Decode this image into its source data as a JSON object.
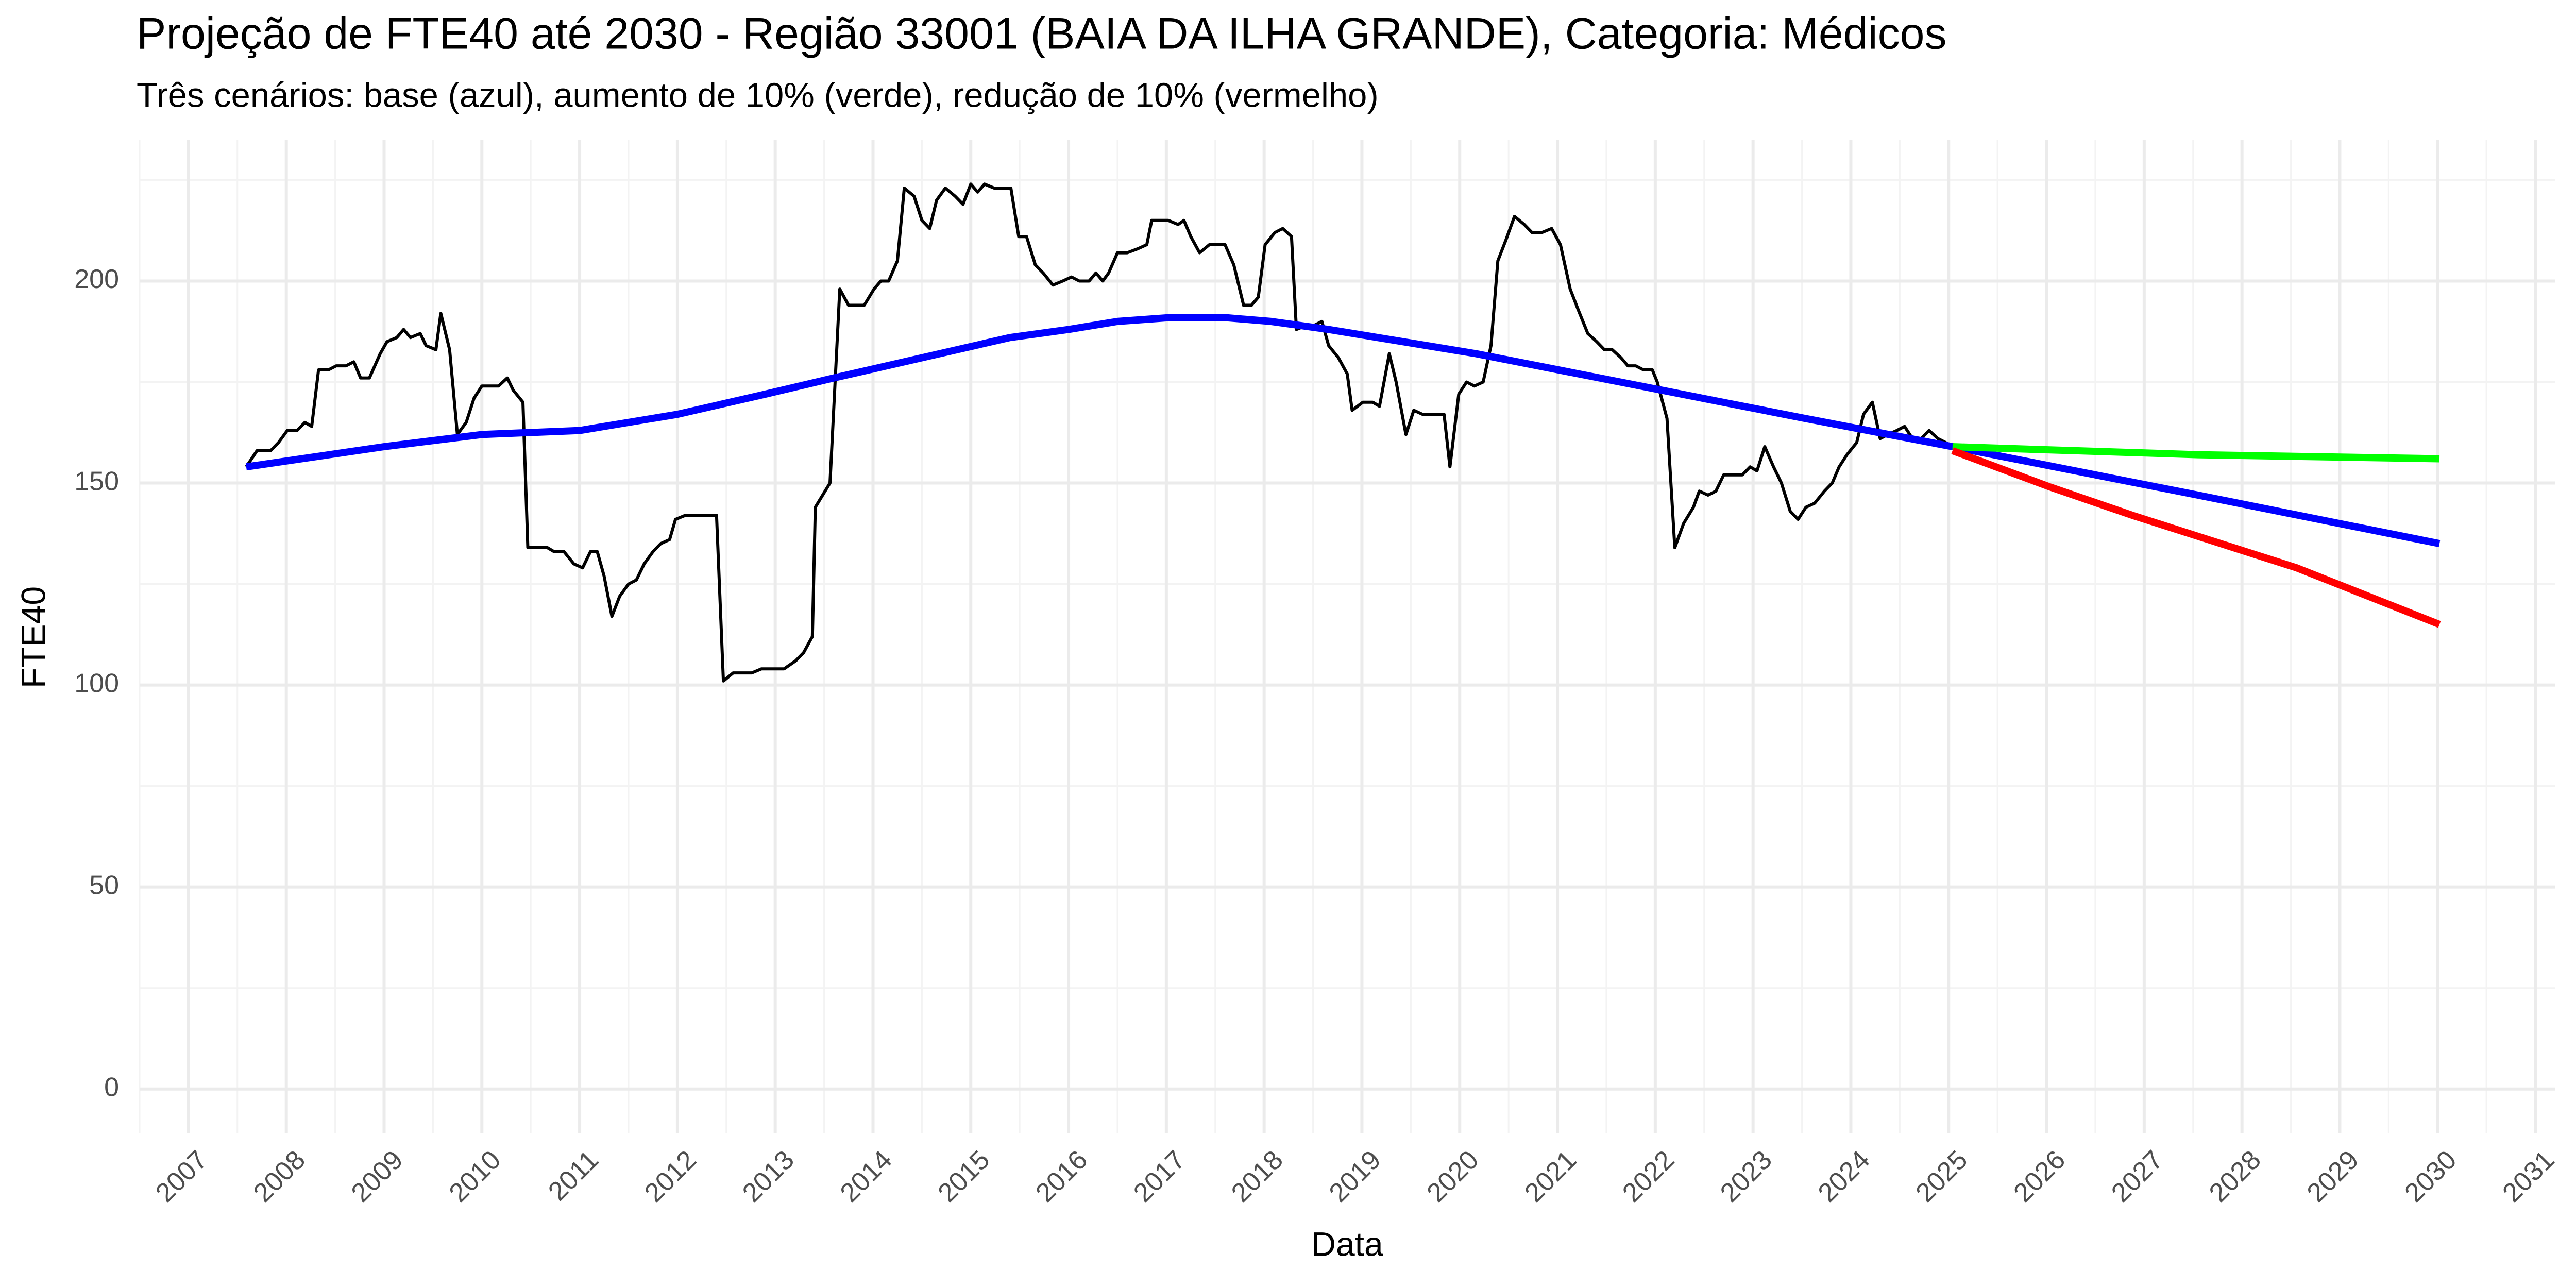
{
  "chart_data": {
    "type": "line",
    "title": "Projeção de FTE40 até 2030 - Região 33001 (BAIA DA ILHA GRANDE), Categoria: Médicos",
    "subtitle": "Três cenários: base (azul), aumento de 10% (verde), redução de 10% (vermelho)",
    "x_label": "Data",
    "y_label": "FTE40",
    "xlim": [
      2006.5,
      2031.2
    ],
    "ylim": [
      -11,
      235
    ],
    "xticks": [
      2007,
      2008,
      2009,
      2010,
      2011,
      2012,
      2013,
      2014,
      2015,
      2016,
      2017,
      2018,
      2019,
      2020,
      2021,
      2022,
      2023,
      2024,
      2025,
      2026,
      2027,
      2028,
      2029,
      2030,
      2031
    ],
    "yticks": [
      0,
      50,
      100,
      150,
      200
    ],
    "grid": true,
    "minor_grid": true,
    "series": [
      {
        "color": "#000000",
        "width": 6,
        "x": [
          2007.59,
          2007.7,
          2007.84,
          2007.92,
          2008.01,
          2008.11,
          2008.19,
          2008.26,
          2008.33,
          2008.43,
          2008.51,
          2008.61,
          2008.69,
          2008.76,
          2008.85,
          2008.96,
          2009.03,
          2009.13,
          2009.2,
          2009.27,
          2009.37,
          2009.43,
          2009.53,
          2009.58,
          2009.67,
          2009.75,
          2009.84,
          2009.92,
          2010.0,
          2010.1,
          2010.17,
          2010.26,
          2010.32,
          2010.42,
          2010.47,
          2010.67,
          2010.74,
          2010.84,
          2010.94,
          2011.03,
          2011.11,
          2011.18,
          2011.25,
          2011.33,
          2011.41,
          2011.5,
          2011.58,
          2011.66,
          2011.75,
          2011.83,
          2011.92,
          2011.98,
          2012.08,
          2012.4,
          2012.47,
          2012.57,
          2012.76,
          2012.86,
          2013.09,
          2013.21,
          2013.29,
          2013.38,
          2013.41,
          2013.56,
          2013.66,
          2013.75,
          2013.91,
          2014.01,
          2014.08,
          2014.16,
          2014.25,
          2014.32,
          2014.42,
          2014.5,
          2014.58,
          2014.65,
          2014.74,
          2014.84,
          2014.92,
          2015.0,
          2015.07,
          2015.14,
          2015.24,
          2015.41,
          2015.49,
          2015.57,
          2015.66,
          2015.74,
          2015.84,
          2015.94,
          2016.03,
          2016.11,
          2016.21,
          2016.28,
          2016.35,
          2016.41,
          2016.5,
          2016.6,
          2016.71,
          2016.8,
          2016.85,
          2016.92,
          2017.02,
          2017.12,
          2017.18,
          2017.25,
          2017.34,
          2017.44,
          2017.52,
          2017.6,
          2017.69,
          2017.79,
          2017.87,
          2017.94,
          2018.01,
          2018.11,
          2018.19,
          2018.28,
          2018.33,
          2018.43,
          2018.51,
          2018.59,
          2018.66,
          2018.76,
          2018.85,
          2018.9,
          2019.01,
          2019.11,
          2019.18,
          2019.28,
          2019.35,
          2019.45,
          2019.53,
          2019.62,
          2019.84,
          2019.9,
          2019.99,
          2020.07,
          2020.15,
          2020.24,
          2020.32,
          2020.39,
          2020.47,
          2020.56,
          2020.66,
          2020.74,
          2020.84,
          2020.94,
          2021.03,
          2021.13,
          2021.21,
          2021.31,
          2021.4,
          2021.48,
          2021.56,
          2021.65,
          2021.72,
          2021.8,
          2021.88,
          2021.97,
          2022.02,
          2022.12,
          2022.2,
          2022.29,
          2022.39,
          2022.45,
          2022.54,
          2022.62,
          2022.7,
          2022.79,
          2022.89,
          2022.97,
          2023.04,
          2023.12,
          2023.21,
          2023.29,
          2023.38,
          2023.46,
          2023.54,
          2023.63,
          2023.73,
          2023.81,
          2023.88,
          2023.96,
          2024.06,
          2024.13,
          2024.22,
          2024.3,
          2024.38,
          2024.47,
          2024.55,
          2024.63,
          2024.72,
          2024.8,
          2024.89,
          2024.97,
          2025.04
        ],
        "values": [
          154,
          158,
          158,
          160,
          163,
          163,
          165,
          164,
          178,
          178,
          179,
          179,
          180,
          176,
          176,
          182,
          185,
          186,
          188,
          186,
          187,
          184,
          183,
          192,
          183,
          162,
          165,
          171,
          174,
          174,
          174,
          176,
          173,
          170,
          134,
          134,
          133,
          133,
          130,
          129,
          133,
          133,
          127,
          117,
          122,
          125,
          126,
          130,
          133,
          135,
          136,
          141,
          142,
          142,
          101,
          103,
          103,
          104,
          104,
          106,
          108,
          112,
          144,
          150,
          198,
          194,
          194,
          198,
          200,
          200,
          205,
          223,
          221,
          215,
          213,
          220,
          223,
          221,
          219,
          224,
          222,
          224,
          223,
          223,
          211,
          211,
          204,
          202,
          199,
          200,
          201,
          200,
          200,
          202,
          200,
          202,
          207,
          207,
          208,
          209,
          215,
          215,
          215,
          214,
          215,
          211,
          207,
          209,
          209,
          209,
          204,
          194,
          194,
          196,
          209,
          212,
          213,
          211,
          188,
          189,
          189,
          190,
          184,
          181,
          177,
          168,
          170,
          170,
          169,
          182,
          175,
          162,
          168,
          167,
          167,
          154,
          172,
          175,
          174,
          175,
          184,
          205,
          210,
          216,
          214,
          212,
          212,
          213,
          209,
          198,
          193,
          187,
          185,
          183,
          183,
          181,
          179,
          179,
          178,
          178,
          175,
          166,
          134,
          140,
          144,
          148,
          147,
          148,
          152,
          152,
          152,
          154,
          153,
          159,
          154,
          150,
          143,
          141,
          144,
          145,
          148,
          150,
          154,
          157,
          160,
          167,
          170,
          161,
          162,
          163,
          164,
          161,
          161,
          163,
          161,
          160,
          159
        ]
      },
      {
        "color": "#0000ff",
        "width": 14,
        "x": [
          2007.59,
          2009.0,
          2010.0,
          2011.0,
          2011.5,
          2012.0,
          2012.9,
          2013.6,
          2014.5,
          2015.4,
          2016.0,
          2016.5,
          2017.07,
          2017.57,
          2018.07,
          2018.66,
          2020.17,
          2021.85,
          2023.53,
          2025.04,
          2027.55,
          2030.02
        ],
        "values": [
          154,
          159,
          162,
          163,
          165,
          167,
          172,
          176,
          181,
          186,
          188,
          190,
          191,
          191,
          190,
          188,
          182,
          174,
          166,
          159,
          147,
          135
        ]
      },
      {
        "color": "#00ff00",
        "width": 14,
        "x": [
          2025.04,
          2027.55,
          2030.02
        ],
        "values": [
          159,
          157,
          156
        ]
      },
      {
        "color": "#ff0000",
        "width": 14,
        "x": [
          2025.04,
          2026.04,
          2026.88,
          2028.56,
          2030.02
        ],
        "values": [
          158,
          149,
          142,
          129,
          115
        ]
      }
    ]
  }
}
